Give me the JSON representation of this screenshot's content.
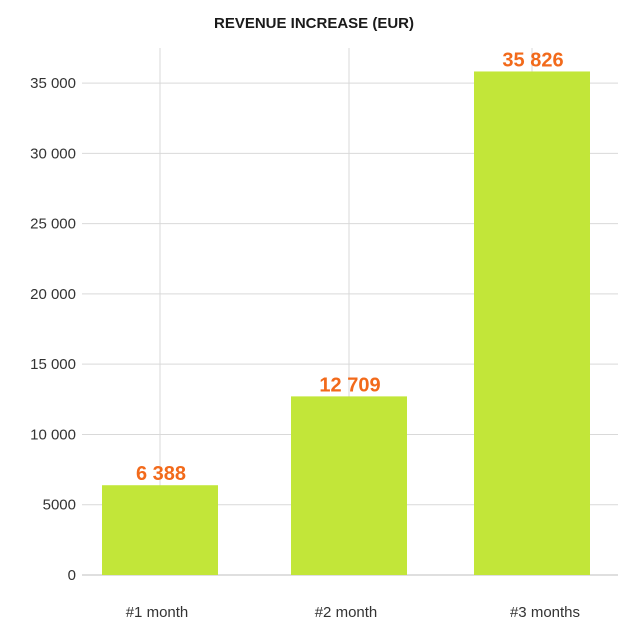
{
  "chart_data": {
    "type": "bar",
    "title": "REVENUE INCREASE (EUR)",
    "xlabel": "",
    "ylabel": "",
    "categories": [
      "#1 month",
      "#2 month",
      "#3 months"
    ],
    "values": [
      6388,
      12709,
      35826
    ],
    "data_labels": [
      "6 388",
      "12 709",
      "35 826"
    ],
    "y_ticks": [
      0,
      5000,
      10000,
      15000,
      20000,
      25000,
      30000,
      35000
    ],
    "y_tick_labels": [
      "0",
      "5000",
      "10 000",
      "15 000",
      "20 000",
      "25 000",
      "30 000",
      "35 000"
    ],
    "ylim": [
      0,
      36500
    ],
    "grid": "on",
    "legend": "none",
    "colors": {
      "bar": "#c2e639",
      "data_label": "#f26a1b",
      "grid": "#d9d9d9",
      "axis": "#bfbfbf"
    }
  }
}
